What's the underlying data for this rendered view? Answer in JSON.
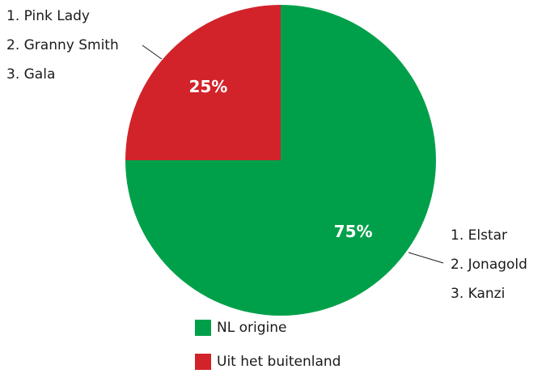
{
  "chart_data": {
    "type": "pie",
    "categories": [
      "NL origine",
      "Uit het buitenland"
    ],
    "values": [
      75,
      25
    ],
    "value_labels": [
      "75%",
      "25%"
    ],
    "colors": [
      "#00a04a",
      "#d2232a"
    ],
    "annotations": [
      [
        "1. Elstar",
        "2. Jonagold",
        "3. Kanzi"
      ],
      [
        "1. Pink Lady",
        "2. Granny Smith",
        "3. Gala"
      ]
    ]
  }
}
